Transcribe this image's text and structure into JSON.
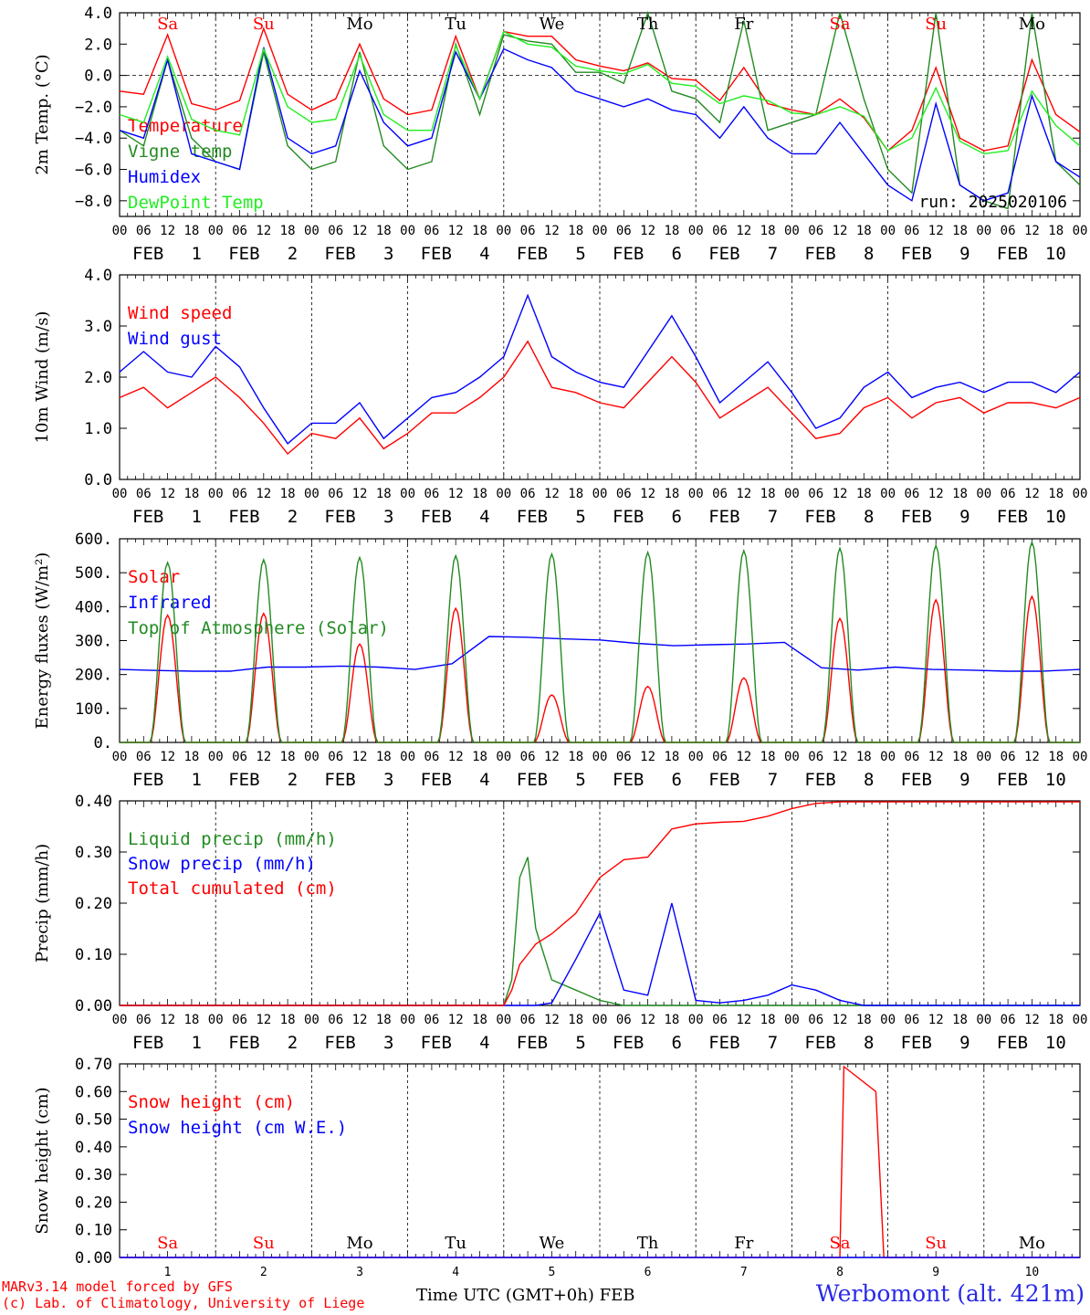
{
  "ticks": [
    "00",
    "06",
    "12",
    "18"
  ],
  "month": "FEB",
  "days": [
    "1",
    "2",
    "3",
    "4",
    "5",
    "6",
    "7",
    "8",
    "9",
    "10"
  ],
  "weekdays": [
    "Sa",
    "Su",
    "Mo",
    "Tu",
    "We",
    "Th",
    "Fr",
    "Sa",
    "Su",
    "Mo"
  ],
  "weekday_colors": [
    "#ff0000",
    "#ff0000",
    "#000000",
    "#000000",
    "#000000",
    "#000000",
    "#000000",
    "#ff0000",
    "#ff0000",
    "#000000"
  ],
  "footer": {
    "model": "MARv3.14 model forced by GFS",
    "credit": "(c) Lab. of Climatology, University of Liege",
    "station": "Werbomont (alt. 421m)",
    "xlabel": "Time UTC (GMT+0h)",
    "xmonth": "FEB"
  },
  "chart_data": [
    {
      "type": "line",
      "id": "temp",
      "ylabel": "2m Temp. (°C)",
      "ylim": [
        -9,
        4
      ],
      "yticks": [
        -8,
        -6,
        -4,
        -2,
        0,
        2,
        4
      ],
      "ytick_labels": [
        "−8.0",
        "−6.0",
        "−4.0",
        "−2.0",
        "0.0",
        "2.0",
        "4.0"
      ],
      "zero_line": true,
      "annotation": "run: 2025020106",
      "x": [
        0,
        6,
        12,
        18,
        24,
        30,
        36,
        42,
        48,
        54,
        60,
        66,
        72,
        78,
        84,
        90,
        96,
        102,
        108,
        114,
        120,
        126,
        132,
        138,
        144,
        150,
        156,
        162,
        168,
        174,
        180,
        186,
        192,
        198,
        204,
        210,
        216,
        222,
        228,
        234,
        240
      ],
      "series": [
        {
          "name": "Temperature",
          "color": "#ff0000",
          "values": [
            -1,
            -1.2,
            2.6,
            -1.8,
            -2.2,
            -1.6,
            3.0,
            -1.2,
            -2.2,
            -1.5,
            2.0,
            -1.5,
            -2.5,
            -2.2,
            2.5,
            -1.5,
            2.8,
            2.5,
            2.5,
            1.0,
            0.6,
            0.3,
            0.8,
            -0.2,
            -0.3,
            -1.6,
            0.5,
            -1.8,
            -2.2,
            -2.5,
            -1.5,
            -2.7,
            -4.8,
            -3.5,
            0.5,
            -4.0,
            -4.8,
            -4.5,
            1.0,
            -2.5,
            -3.6
          ]
        },
        {
          "name": "Vigne temp",
          "color": "#228b22",
          "values": [
            -3.5,
            -4.5,
            1.0,
            -4.0,
            -5.5,
            -6.0,
            1.5,
            -4.5,
            -6.0,
            -5.5,
            1.5,
            -4.5,
            -6.0,
            -5.5,
            2.0,
            -2.5,
            2.6,
            2.2,
            2.0,
            0.2,
            0.2,
            -0.5,
            4.0,
            -1.0,
            -1.5,
            -3.0,
            3.5,
            -3.5,
            -3.0,
            -2.5,
            4.0,
            -1.5,
            -6.0,
            -7.5,
            4.0,
            -7.0,
            -8.0,
            -8.5,
            4.0,
            -5.5,
            -7.0
          ]
        },
        {
          "name": "Humidex",
          "color": "#0000ff",
          "values": [
            -3.5,
            -4,
            1,
            -5,
            -5.5,
            -6,
            1.8,
            -4.0,
            -5.0,
            -4.5,
            0.3,
            -3.0,
            -4.5,
            -4.0,
            1.5,
            -1.5,
            1.7,
            1.0,
            0.5,
            -1.0,
            -1.5,
            -2.0,
            -1.5,
            -2.2,
            -2.5,
            -4.0,
            -2.0,
            -4.0,
            -5.0,
            -5.0,
            -3.0,
            -5.0,
            -7.0,
            -8.0,
            -1.8,
            -7.0,
            -8.0,
            -7.5,
            -1.3,
            -5.5,
            -6.5
          ]
        },
        {
          "name": "DewPoint Temp",
          "color": "#22ee22",
          "values": [
            -2.5,
            -3.0,
            1.2,
            -2.8,
            -3.5,
            -3.8,
            1.7,
            -2.0,
            -3.0,
            -2.8,
            1.3,
            -2.5,
            -3.5,
            -3.5,
            1.9,
            -1.5,
            2.8,
            2.0,
            1.8,
            0.6,
            0.3,
            0.1,
            0.7,
            -0.5,
            -0.7,
            -1.8,
            -1.3,
            -1.6,
            -2.4,
            -2.5,
            -2.0,
            -2.6,
            -4.8,
            -4.0,
            -0.8,
            -4.2,
            -5.0,
            -4.8,
            -1.0,
            -3.2,
            -4.5
          ]
        }
      ]
    },
    {
      "type": "line",
      "id": "wind",
      "ylabel": "10m Wind (m/s)",
      "ylim": [
        0,
        4
      ],
      "yticks": [
        0,
        1,
        2,
        3,
        4
      ],
      "ytick_labels": [
        "0.0",
        "1.0",
        "2.0",
        "3.0",
        "4.0"
      ],
      "x": [
        0,
        6,
        12,
        18,
        24,
        30,
        36,
        42,
        48,
        54,
        60,
        66,
        72,
        78,
        84,
        90,
        96,
        102,
        108,
        114,
        120,
        126,
        132,
        138,
        144,
        150,
        156,
        162,
        168,
        174,
        180,
        186,
        192,
        198,
        204,
        210,
        216,
        222,
        228,
        234,
        240
      ],
      "series": [
        {
          "name": "Wind speed",
          "color": "#ff0000",
          "values": [
            1.6,
            1.8,
            1.4,
            1.7,
            2.0,
            1.6,
            1.1,
            0.5,
            0.9,
            0.8,
            1.2,
            0.6,
            0.9,
            1.3,
            1.3,
            1.6,
            2.0,
            2.7,
            1.8,
            1.7,
            1.5,
            1.4,
            1.9,
            2.4,
            1.9,
            1.2,
            1.5,
            1.8,
            1.3,
            0.8,
            0.9,
            1.4,
            1.6,
            1.2,
            1.5,
            1.6,
            1.3,
            1.5,
            1.5,
            1.4,
            1.6
          ]
        },
        {
          "name": "Wind gust",
          "color": "#0000ff",
          "values": [
            2.1,
            2.5,
            2.1,
            2.0,
            2.6,
            2.2,
            1.4,
            0.7,
            1.1,
            1.1,
            1.5,
            0.8,
            1.2,
            1.6,
            1.7,
            2.0,
            2.4,
            3.6,
            2.4,
            2.1,
            1.9,
            1.8,
            2.5,
            3.2,
            2.4,
            1.5,
            1.9,
            2.3,
            1.7,
            1.0,
            1.2,
            1.8,
            2.1,
            1.6,
            1.8,
            1.9,
            1.7,
            1.9,
            1.9,
            1.7,
            2.1
          ]
        }
      ]
    },
    {
      "type": "line",
      "id": "energy",
      "ylabel": "Energy fluxes (W/m²)",
      "ylim": [
        0,
        600
      ],
      "yticks": [
        0,
        100,
        200,
        300,
        400,
        500,
        600
      ],
      "ytick_labels": [
        "0.",
        "100.",
        "200.",
        "300.",
        "400.",
        "500.",
        "600."
      ],
      "series": [
        {
          "name": "Solar",
          "color": "#ff0000",
          "peaks": [
            375,
            380,
            290,
            395,
            140,
            165,
            190,
            365,
            420,
            430
          ]
        },
        {
          "name": "Infrared",
          "color": "#0000ff",
          "values": [
            215,
            212,
            210,
            210,
            222,
            222,
            225,
            222,
            215,
            232,
            312,
            310,
            305,
            302,
            292,
            285,
            288,
            290,
            295,
            220,
            213,
            222,
            215,
            213,
            210,
            210,
            215
          ]
        },
        {
          "name": "Top of Atmosphere (Solar)",
          "color": "#228b22",
          "peaks": [
            530,
            538,
            545,
            550,
            555,
            560,
            565,
            572,
            580,
            590
          ]
        }
      ]
    },
    {
      "type": "line",
      "id": "precip",
      "ylabel": "Precip (mm/h)",
      "ylim": [
        0,
        0.4
      ],
      "yticks": [
        0,
        0.1,
        0.2,
        0.3,
        0.4
      ],
      "ytick_labels": [
        "0.00",
        "0.10",
        "0.20",
        "0.30",
        "0.40"
      ],
      "x": [
        0,
        96,
        98,
        100,
        102,
        104,
        108,
        114,
        120,
        126,
        132,
        138,
        144,
        150,
        156,
        162,
        168,
        174,
        180,
        186,
        192,
        198,
        204,
        210,
        216,
        222,
        228,
        234,
        240
      ],
      "series": [
        {
          "name": "Liquid precip (mm/h)",
          "color": "#228b22",
          "values": [
            0,
            0,
            0.05,
            0.25,
            0.29,
            0.15,
            0.05,
            0.03,
            0.01,
            0,
            0,
            0,
            0,
            0,
            0,
            0,
            0,
            0,
            0,
            0,
            0,
            0,
            0,
            0,
            0,
            0,
            0,
            0,
            0
          ]
        },
        {
          "name": "Snow precip (mm/h)",
          "color": "#0000ff",
          "values": [
            0,
            0,
            0,
            0,
            0,
            0,
            0.005,
            0.09,
            0.18,
            0.03,
            0.02,
            0.2,
            0.01,
            0.005,
            0.01,
            0.02,
            0.04,
            0.03,
            0.01,
            0,
            0,
            0,
            0,
            0,
            0,
            0,
            0,
            0,
            0
          ]
        },
        {
          "name": "Total cumulated (cm)",
          "color": "#ff0000",
          "values": [
            0,
            0,
            0.03,
            0.08,
            0.1,
            0.12,
            0.14,
            0.18,
            0.25,
            0.285,
            0.29,
            0.345,
            0.355,
            0.358,
            0.36,
            0.37,
            0.385,
            0.395,
            0.398,
            0.398,
            0.398,
            0.398,
            0.398,
            0.398,
            0.398,
            0.398,
            0.398,
            0.398,
            0.398
          ]
        }
      ]
    },
    {
      "type": "line",
      "id": "snow",
      "ylabel": "Snow height (cm)",
      "ylim": [
        0,
        0.7
      ],
      "yticks": [
        0,
        0.1,
        0.2,
        0.3,
        0.4,
        0.5,
        0.6,
        0.7
      ],
      "ytick_labels": [
        "0.00",
        "0.10",
        "0.20",
        "0.30",
        "0.40",
        "0.50",
        "0.60",
        "0.70"
      ],
      "x": [
        0,
        180,
        181,
        189,
        191,
        240
      ],
      "series": [
        {
          "name": "Snow height (cm)",
          "color": "#ff0000",
          "values": [
            0,
            0,
            0.69,
            0.6,
            0,
            0
          ]
        },
        {
          "name": "Snow height (cm W.E.)",
          "color": "#0000ff",
          "values": [
            0,
            0,
            0,
            0,
            0,
            0
          ]
        }
      ]
    }
  ]
}
